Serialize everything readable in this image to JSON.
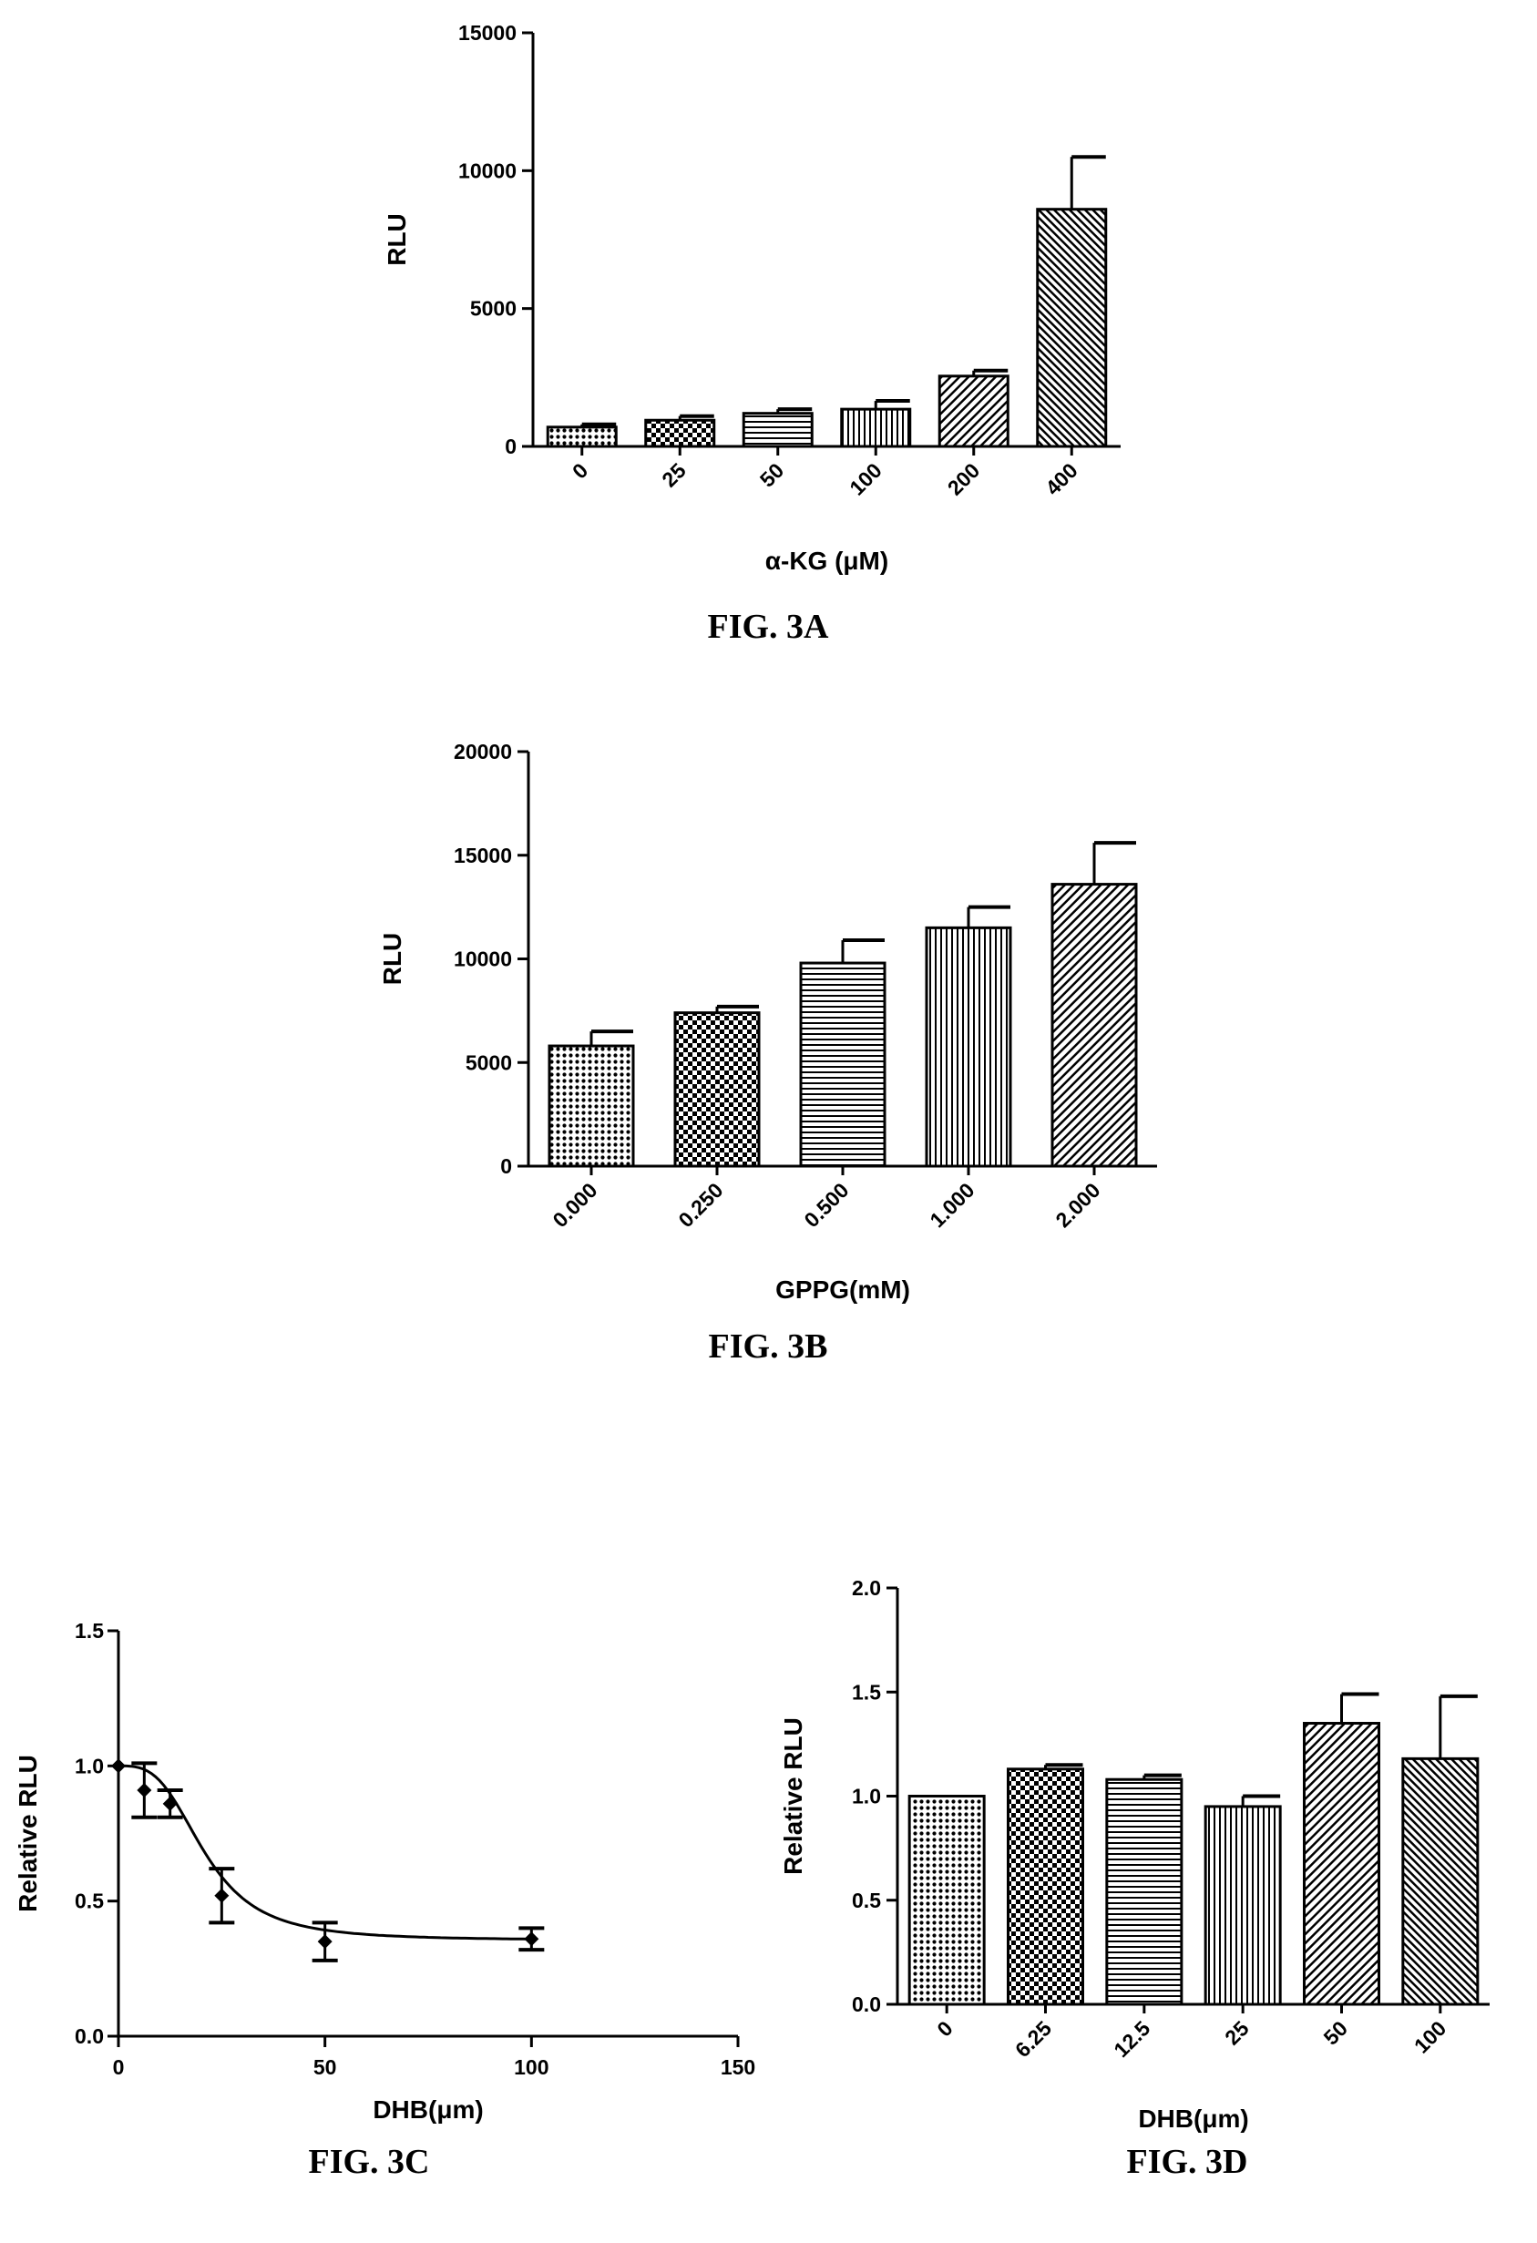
{
  "chart_data": [
    {
      "id": "A",
      "type": "bar",
      "caption": "FIG. 3A",
      "xlabel": "α-KG (μM)",
      "ylabel": "RLU",
      "ylim": [
        0,
        15000
      ],
      "yticks": [
        "0",
        "5000",
        "10000",
        "15000"
      ],
      "categories": [
        "0",
        "25",
        "50",
        "100",
        "200",
        "400"
      ],
      "values": [
        700,
        950,
        1200,
        1350,
        2550,
        8600
      ],
      "errors": [
        100,
        150,
        150,
        300,
        200,
        1900
      ],
      "patterns": [
        "dots",
        "checker",
        "hlines",
        "vlines",
        "diag",
        "diag2"
      ]
    },
    {
      "id": "B",
      "type": "bar",
      "caption": "FIG. 3B",
      "xlabel": "GPPG(mM)",
      "ylabel": "RLU",
      "ylim": [
        0,
        20000
      ],
      "yticks": [
        "0",
        "5000",
        "10000",
        "15000",
        "20000"
      ],
      "categories": [
        "0.000",
        "0.250",
        "0.500",
        "1.000",
        "2.000"
      ],
      "values": [
        5800,
        7400,
        9800,
        11500,
        13600
      ],
      "errors": [
        700,
        300,
        1100,
        1000,
        2000
      ],
      "patterns": [
        "dots",
        "checker",
        "hlines",
        "vlines",
        "diag"
      ]
    },
    {
      "id": "C",
      "type": "scatter",
      "caption": "FIG. 3C",
      "xlabel": "DHB(μm)",
      "ylabel": "Relative RLU",
      "xlim": [
        0,
        150
      ],
      "ylim": [
        0,
        1.5
      ],
      "xticks": [
        "0",
        "50",
        "100",
        "150"
      ],
      "yticks": [
        "0.0",
        "0.5",
        "1.0",
        "1.5"
      ],
      "x": [
        0,
        6.25,
        12.5,
        25,
        50,
        100
      ],
      "y": [
        1.0,
        0.91,
        0.86,
        0.52,
        0.35,
        0.36
      ],
      "errors": [
        0,
        0.1,
        0.05,
        0.1,
        0.07,
        0.04
      ],
      "fit": "sigmoidal"
    },
    {
      "id": "D",
      "type": "bar",
      "caption": "FIG. 3D",
      "xlabel": "DHB(μm)",
      "ylabel": "Relative RLU",
      "ylim": [
        0,
        2.0
      ],
      "yticks": [
        "0.0",
        "0.5",
        "1.0",
        "1.5",
        "2.0"
      ],
      "categories": [
        "0",
        "6.25",
        "12.5",
        "25",
        "50",
        "100"
      ],
      "values": [
        1.0,
        1.13,
        1.08,
        0.95,
        1.35,
        1.18
      ],
      "errors": [
        0,
        0.02,
        0.02,
        0.05,
        0.14,
        0.3
      ],
      "patterns": [
        "dots",
        "checker",
        "hlines",
        "vlines",
        "diag",
        "diag2"
      ]
    }
  ]
}
